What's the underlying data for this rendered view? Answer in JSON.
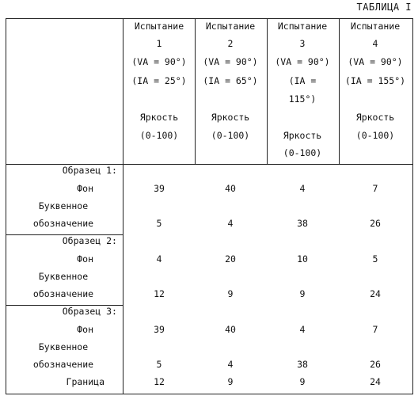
{
  "table_title": "ТАБЛИЦА I",
  "headers": [
    {
      "name": "Испытание",
      "number": "1",
      "va": "(VA = 90°)",
      "ia": "(IA = 25°)",
      "brightness": "Яркость",
      "range": "(0-100)"
    },
    {
      "name": "Испытание",
      "number": "2",
      "va": "(VA = 90°)",
      "ia": "(IA = 65°)",
      "brightness": "Яркость",
      "range": "(0-100)"
    },
    {
      "name": "Испытание",
      "number": "3",
      "va": "(VA = 90°)",
      "ia_line1": "(IA =",
      "ia_line2": "115°)",
      "brightness": "Яркость",
      "range": "(0-100)"
    },
    {
      "name": "Испытание",
      "number": "4",
      "va": "(VA = 90°)",
      "ia": "(IA = 155°)",
      "brightness": "Яркость",
      "range": "(0-100)"
    }
  ],
  "samples": [
    {
      "label": "Образец 1:",
      "background_label": "Фон",
      "letter_label_1": "Буквенное",
      "letter_label_2": "обозначение",
      "background_values": [
        "39",
        "40",
        "4",
        "7"
      ],
      "letter_values": [
        "5",
        "4",
        "38",
        "26"
      ]
    },
    {
      "label": "Образец 2:",
      "background_label": "Фон",
      "letter_label_1": "Буквенное",
      "letter_label_2": "обозначение",
      "background_values": [
        "4",
        "20",
        "10",
        "5"
      ],
      "letter_values": [
        "12",
        "9",
        "9",
        "24"
      ]
    },
    {
      "label": "Образец 3:",
      "background_label": "Фон",
      "letter_label_1": "Буквенное",
      "letter_label_2": "обозначение",
      "border_label": "Граница",
      "background_values": [
        "39",
        "40",
        "4",
        "7"
      ],
      "letter_values": [
        "5",
        "4",
        "38",
        "26"
      ],
      "border_values": [
        "12",
        "9",
        "9",
        "24"
      ]
    }
  ]
}
